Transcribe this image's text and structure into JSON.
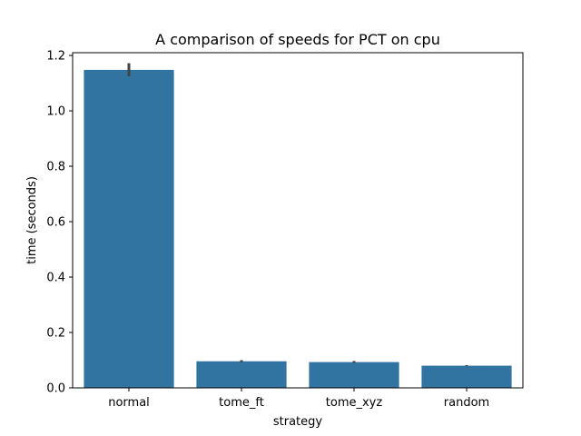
{
  "chart_data": {
    "type": "bar",
    "title": "A comparison of speeds for PCT on cpu",
    "xlabel": "strategy",
    "ylabel": "time (seconds)",
    "categories": [
      "normal",
      "tome_ft",
      "tome_xyz",
      "random"
    ],
    "values": [
      1.148,
      0.096,
      0.093,
      0.08
    ],
    "error_low": [
      1.125,
      0.093,
      0.09,
      0.078
    ],
    "error_high": [
      1.172,
      0.1,
      0.097,
      0.082
    ],
    "ylim": [
      0,
      1.21
    ],
    "yticks": [
      0.0,
      0.2,
      0.4,
      0.6,
      0.8,
      1.0,
      1.2
    ],
    "ytick_labels": [
      "0.0",
      "0.2",
      "0.4",
      "0.6",
      "0.8",
      "1.0",
      "1.2"
    ],
    "grid": false,
    "legend": "none",
    "bar_color": "#3274a1",
    "error_color": "#424242"
  }
}
